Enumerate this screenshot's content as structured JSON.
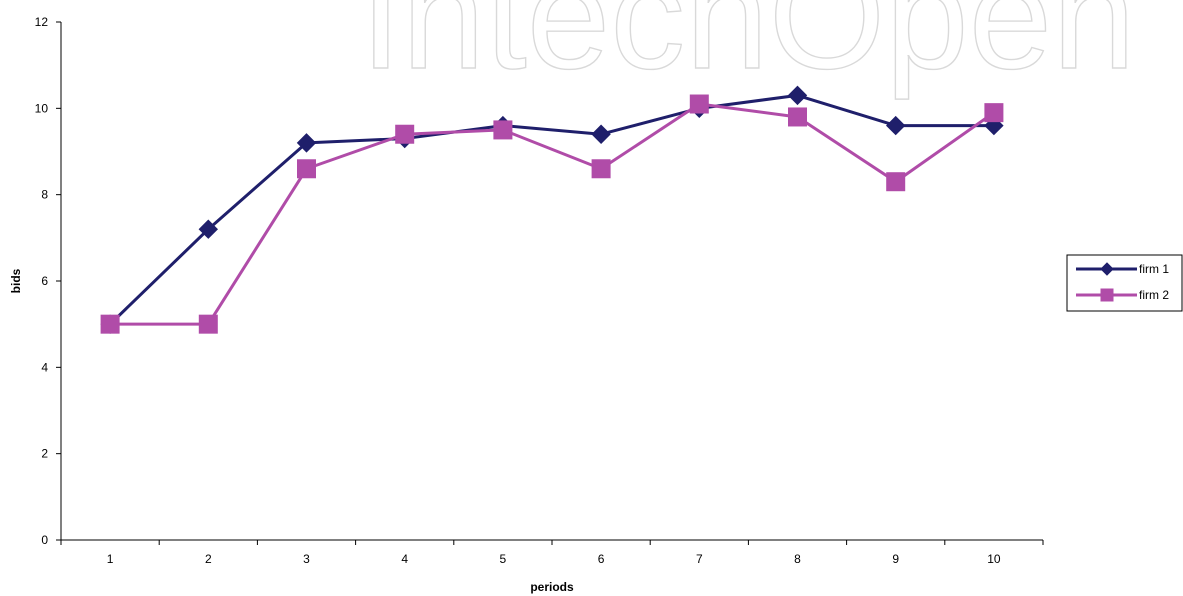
{
  "watermark": "IntechOpen",
  "chart_data": {
    "type": "line",
    "categories": [
      "1",
      "2",
      "3",
      "4",
      "5",
      "6",
      "7",
      "8",
      "9",
      "10"
    ],
    "series": [
      {
        "name": "firm 1",
        "values": [
          5.0,
          7.2,
          9.2,
          9.3,
          9.6,
          9.4,
          10.0,
          10.3,
          9.6,
          9.6
        ],
        "color": "#1f1f6b",
        "marker": "diamond"
      },
      {
        "name": "firm 2",
        "values": [
          5.0,
          5.0,
          8.6,
          9.4,
          9.5,
          8.6,
          10.1,
          9.8,
          8.3,
          9.9
        ],
        "color": "#b04ca8",
        "marker": "square"
      }
    ],
    "xlabel": "periods",
    "ylabel": "bids",
    "ylim": [
      0,
      12
    ],
    "yticks": [
      0,
      2,
      4,
      6,
      8,
      10,
      12
    ],
    "grid": false,
    "legend": "right"
  }
}
